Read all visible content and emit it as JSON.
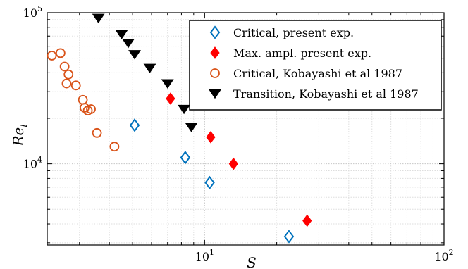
{
  "chart_data": {
    "type": "scatter",
    "title": "",
    "xlabel": "S",
    "ylabel": {
      "main": "Re",
      "sub": "l"
    },
    "xscale": "log",
    "yscale": "log",
    "xlim": [
      2.2,
      100
    ],
    "ylim": [
      2900,
      100000
    ],
    "grid": true,
    "legend_position": "top-right",
    "x_ticks": [
      {
        "value": 10,
        "base": "10",
        "exp": "1"
      },
      {
        "value": 100,
        "base": "10",
        "exp": "2"
      }
    ],
    "y_ticks": [
      {
        "value": 10000,
        "base": "10",
        "exp": "4"
      },
      {
        "value": 100000,
        "base": "10",
        "exp": "5"
      }
    ],
    "series": [
      {
        "name": "Critical, present exp.",
        "marker": "diamond-open",
        "color": "#0072BD",
        "points": [
          {
            "x": 5.1,
            "y": 18000
          },
          {
            "x": 8.3,
            "y": 11000
          },
          {
            "x": 10.5,
            "y": 7500
          },
          {
            "x": 22.5,
            "y": 3300
          }
        ]
      },
      {
        "name": "Max. ampl. present exp.",
        "marker": "diamond-filled",
        "color": "#FF0000",
        "points": [
          {
            "x": 7.2,
            "y": 27000
          },
          {
            "x": 10.6,
            "y": 15000
          },
          {
            "x": 13.2,
            "y": 10000
          },
          {
            "x": 26.8,
            "y": 4200
          }
        ]
      },
      {
        "name": "Critical, Kobayashi et al 1987",
        "marker": "circle-open",
        "color": "#D95319",
        "points": [
          {
            "x": 2.3,
            "y": 52000
          },
          {
            "x": 2.5,
            "y": 54000
          },
          {
            "x": 2.6,
            "y": 44000
          },
          {
            "x": 2.7,
            "y": 39000
          },
          {
            "x": 2.65,
            "y": 34000
          },
          {
            "x": 2.9,
            "y": 33000
          },
          {
            "x": 3.1,
            "y": 26500
          },
          {
            "x": 3.15,
            "y": 23500
          },
          {
            "x": 3.25,
            "y": 22500
          },
          {
            "x": 3.35,
            "y": 23000
          },
          {
            "x": 3.55,
            "y": 16000
          },
          {
            "x": 4.2,
            "y": 13000
          }
        ]
      },
      {
        "name": "Transition, Kobayashi et al 1987",
        "marker": "triangle-down-filled",
        "color": "#000000",
        "points": [
          {
            "x": 3.6,
            "y": 92000
          },
          {
            "x": 4.5,
            "y": 72000
          },
          {
            "x": 4.8,
            "y": 63000
          },
          {
            "x": 5.1,
            "y": 53000
          },
          {
            "x": 5.9,
            "y": 43000
          },
          {
            "x": 7.0,
            "y": 34000
          },
          {
            "x": 8.2,
            "y": 23000
          },
          {
            "x": 8.8,
            "y": 17500
          }
        ]
      }
    ]
  }
}
